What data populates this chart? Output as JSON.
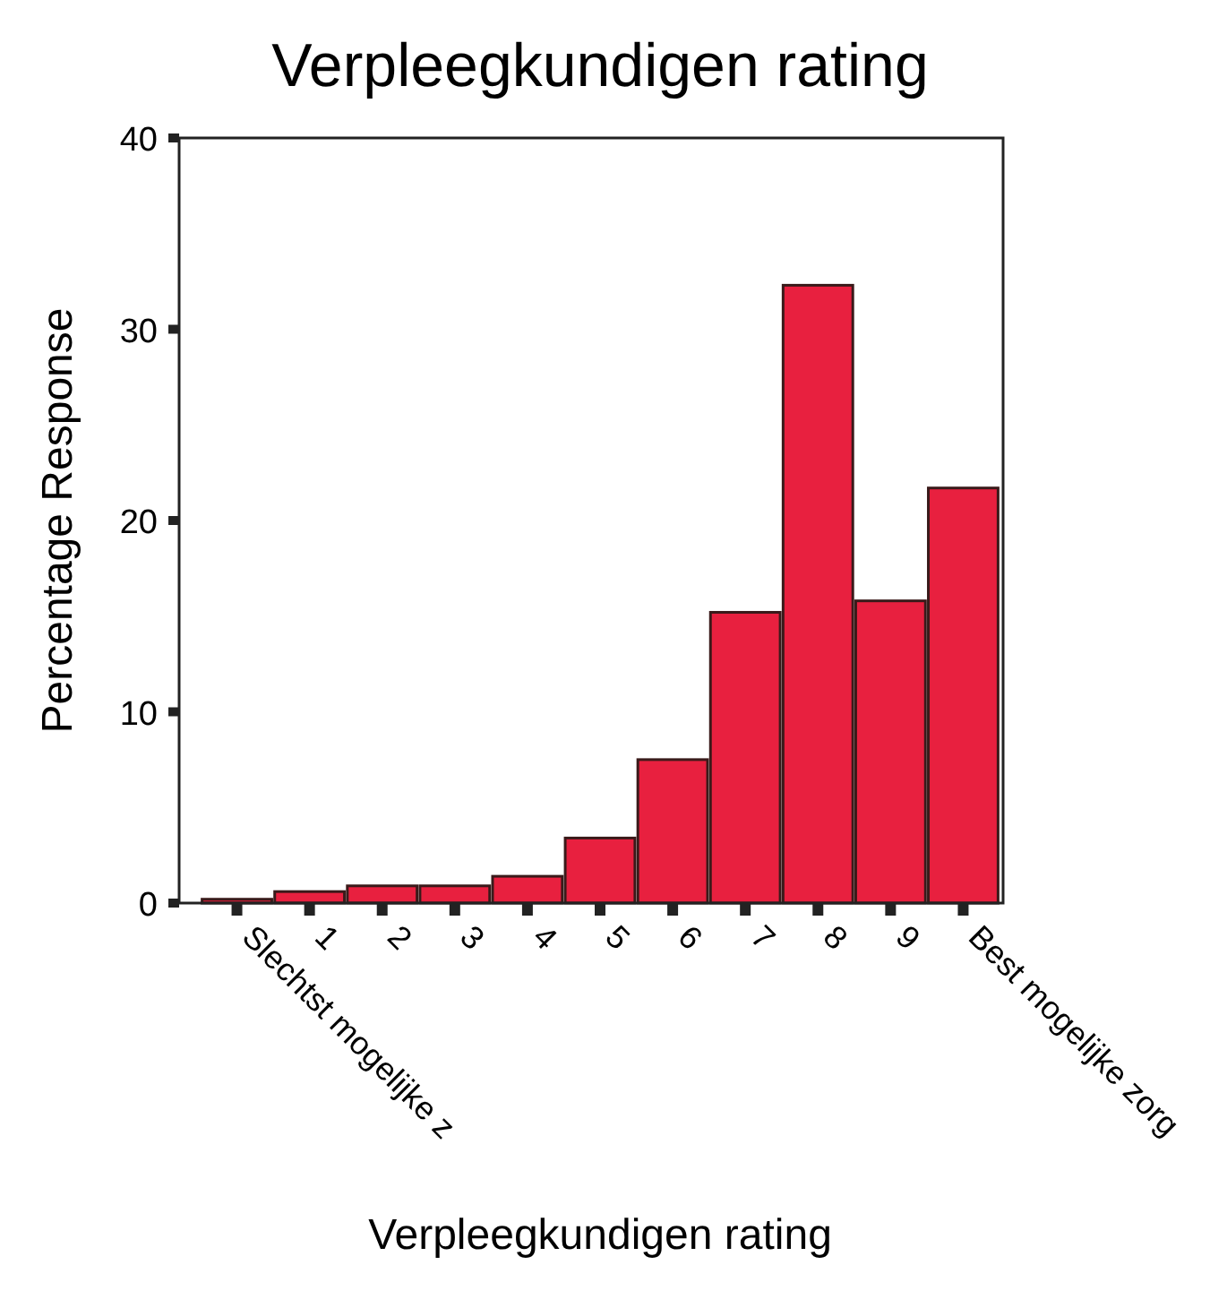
{
  "chart_data": {
    "type": "bar",
    "title": "Verpleegkundigen rating",
    "xlabel": "Verpleegkundigen rating",
    "ylabel": "Percentage Response",
    "categories": [
      "Slechtst mogelijke z",
      "1",
      "2",
      "3",
      "4",
      "5",
      "6",
      "7",
      "8",
      "9",
      "Best mogelijke zorg"
    ],
    "values": [
      0.2,
      0.6,
      0.9,
      0.9,
      1.4,
      3.4,
      7.5,
      15.2,
      32.3,
      15.8,
      21.7
    ],
    "color": "#e8203f",
    "ylim": [
      0,
      40
    ],
    "yticks": [
      0,
      10,
      20,
      30,
      40
    ],
    "grid": false
  }
}
